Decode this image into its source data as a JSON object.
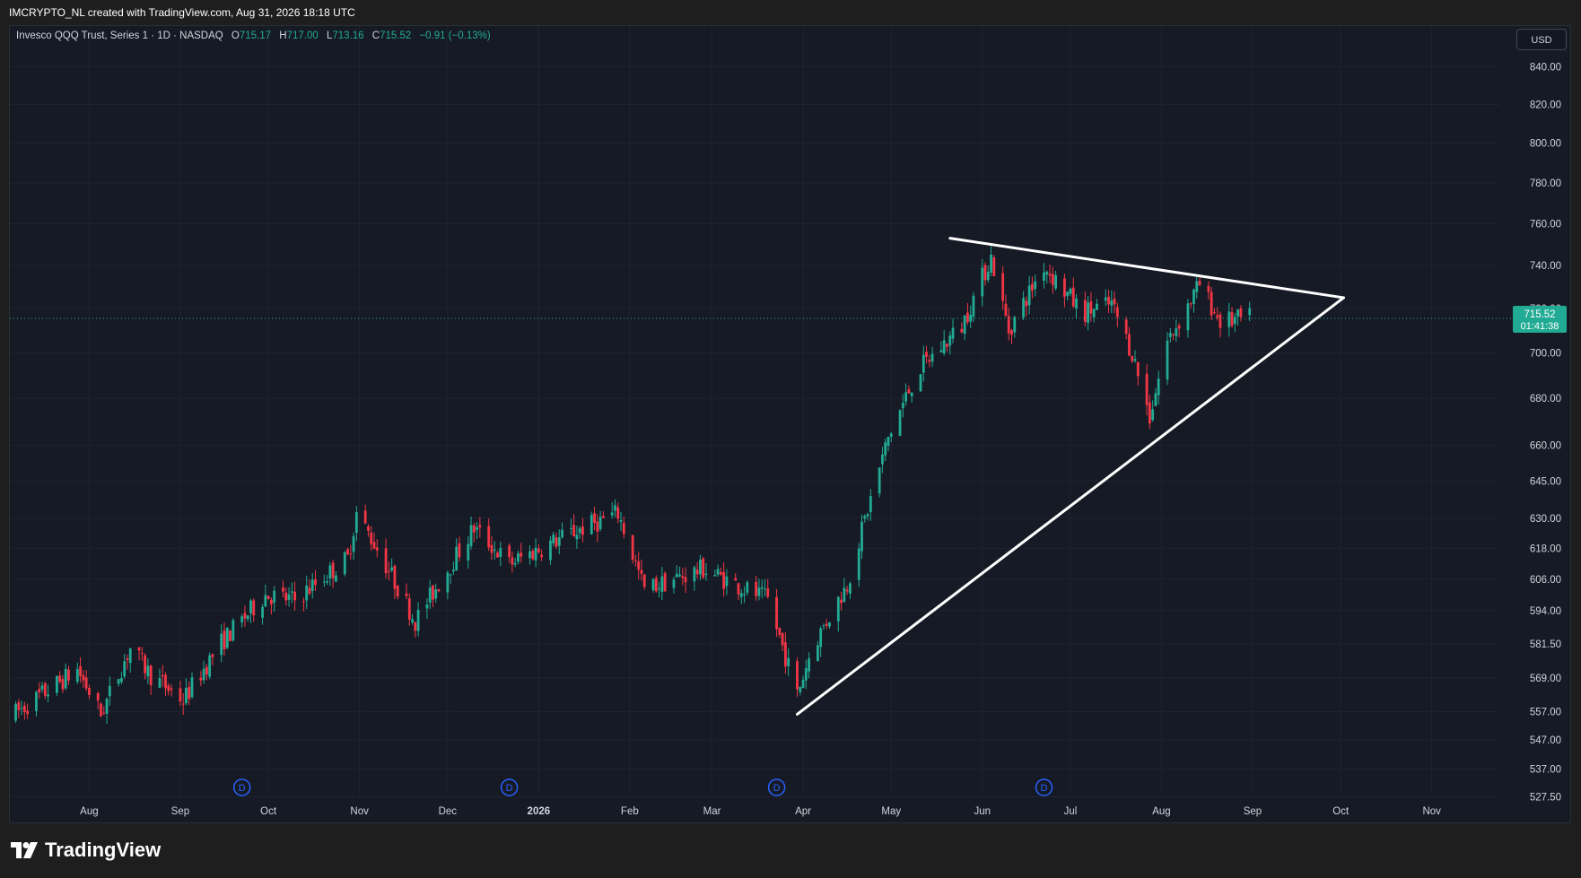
{
  "header": {
    "credit": "IMCRYPTO_NL created with TradingView.com, Aug 31, 2026 18:18 UTC"
  },
  "legend": {
    "symbol": "Invesco QQQ Trust, Series 1 · 1D · NASDAQ",
    "open_label": "O",
    "open": "715.17",
    "high_label": "H",
    "high": "717.00",
    "low_label": "L",
    "low": "713.16",
    "close_label": "C",
    "close": "715.52",
    "change": "−0.91 (−0.13%)"
  },
  "currency_button": "USD",
  "price_tag": {
    "price": "715.52",
    "countdown": "01:41:38"
  },
  "dividend_marker": "D",
  "brand": "TradingView",
  "colors": {
    "up": "#22ab94",
    "down": "#f23645",
    "background": "#161a25",
    "grid": "#1f2330",
    "axis_text": "#d1d4dc",
    "trendline": "#ffffff",
    "dividend": "#2962ff"
  },
  "chart_data": {
    "type": "candlestick",
    "x_axis": {
      "tick_labels": [
        "Aug",
        "Sep",
        "Oct",
        "Nov",
        "Dec",
        "2026",
        "Feb",
        "Mar",
        "Apr",
        "May",
        "Jun",
        "Jul",
        "Aug",
        "Sep",
        "Oct",
        "Nov"
      ],
      "tick_dates": [
        "2025-08-01",
        "2025-09-01",
        "2025-10-01",
        "2025-11-01",
        "2025-12-01",
        "2026-01-01",
        "2026-02-01",
        "2026-03-01",
        "2026-04-01",
        "2026-05-01",
        "2026-06-01",
        "2026-07-01",
        "2026-08-01",
        "2026-09-01",
        "2026-10-01",
        "2026-11-01"
      ],
      "range": [
        "2025-07-05",
        "2026-11-24"
      ]
    },
    "y_axis": {
      "scale": "log",
      "range": [
        519,
        862
      ],
      "tick_labels": [
        "840.00",
        "820.00",
        "800.00",
        "780.00",
        "760.00",
        "740.00",
        "720.00",
        "700.00",
        "680.00",
        "660.00",
        "645.00",
        "630.00",
        "618.00",
        "606.00",
        "594.00",
        "581.50",
        "569.00",
        "557.00",
        "547.00",
        "537.00",
        "527.50"
      ],
      "tick_values": [
        840,
        820,
        800,
        780,
        760,
        740,
        720,
        700,
        680,
        660,
        645,
        630,
        618,
        606,
        594,
        581.5,
        569,
        557,
        547,
        537,
        527.5
      ]
    },
    "last_price": 715.52,
    "price_path": [
      {
        "date": "2025-07-05",
        "price": 555
      },
      {
        "date": "2025-07-28",
        "price": 572
      },
      {
        "date": "2025-08-05",
        "price": 556
      },
      {
        "date": "2025-08-15",
        "price": 580
      },
      {
        "date": "2025-08-22",
        "price": 570
      },
      {
        "date": "2025-09-02",
        "price": 561
      },
      {
        "date": "2025-09-15",
        "price": 582
      },
      {
        "date": "2025-09-30",
        "price": 600
      },
      {
        "date": "2025-10-10",
        "price": 598
      },
      {
        "date": "2025-10-28",
        "price": 614
      },
      {
        "date": "2025-10-31",
        "price": 632
      },
      {
        "date": "2025-11-07",
        "price": 618
      },
      {
        "date": "2025-11-20",
        "price": 590
      },
      {
        "date": "2025-12-10",
        "price": 626
      },
      {
        "date": "2025-12-22",
        "price": 612
      },
      {
        "date": "2026-01-12",
        "price": 624
      },
      {
        "date": "2026-01-28",
        "price": 632
      },
      {
        "date": "2026-02-06",
        "price": 602
      },
      {
        "date": "2026-02-26",
        "price": 610
      },
      {
        "date": "2026-03-20",
        "price": 598
      },
      {
        "date": "2026-03-30",
        "price": 563
      },
      {
        "date": "2026-04-04",
        "price": 580
      },
      {
        "date": "2026-04-16",
        "price": 604
      },
      {
        "date": "2026-04-30",
        "price": 663
      },
      {
        "date": "2026-05-10",
        "price": 692
      },
      {
        "date": "2026-05-25",
        "price": 712
      },
      {
        "date": "2026-06-04",
        "price": 744
      },
      {
        "date": "2026-06-10",
        "price": 710
      },
      {
        "date": "2026-06-22",
        "price": 740
      },
      {
        "date": "2026-07-05",
        "price": 718
      },
      {
        "date": "2026-07-15",
        "price": 722
      },
      {
        "date": "2026-07-22",
        "price": 700
      },
      {
        "date": "2026-07-28",
        "price": 672
      },
      {
        "date": "2026-08-03",
        "price": 705
      },
      {
        "date": "2026-08-14",
        "price": 731
      },
      {
        "date": "2026-08-21",
        "price": 714
      },
      {
        "date": "2026-08-31",
        "price": 715.5
      }
    ],
    "trendlines": [
      {
        "name": "resistance",
        "from": {
          "date": "2026-05-21",
          "price": 753
        },
        "to": {
          "date": "2026-10-02",
          "price": 725
        }
      },
      {
        "name": "support",
        "from": {
          "date": "2026-03-30",
          "price": 556
        },
        "to": {
          "date": "2026-10-02",
          "price": 725
        }
      }
    ],
    "dividend_dates": [
      "2025-09-22",
      "2025-12-22",
      "2026-03-23",
      "2026-06-22"
    ],
    "grid": true
  }
}
